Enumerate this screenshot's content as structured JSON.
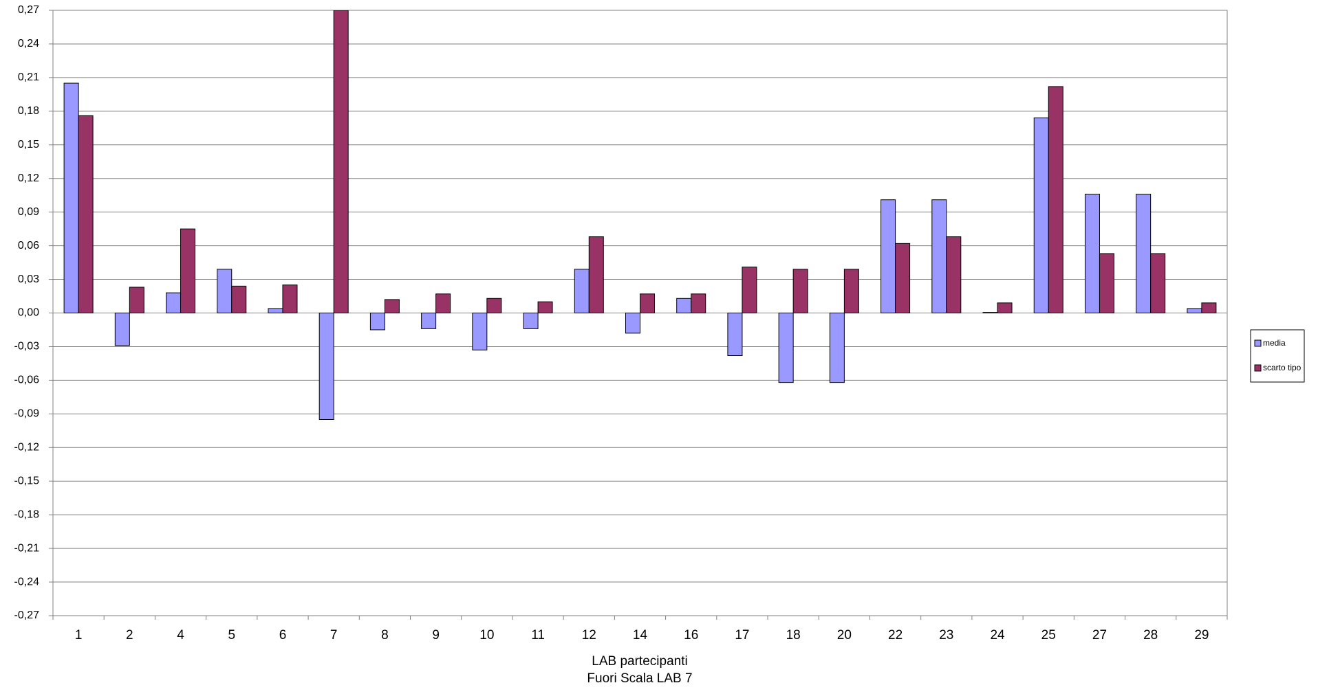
{
  "chart_data": {
    "type": "bar",
    "xlabel": "LAB partecipanti",
    "annotation": "Fuori Scala LAB 7",
    "annotation_color": "#ff0000",
    "categories": [
      "1",
      "2",
      "4",
      "5",
      "6",
      "7",
      "8",
      "9",
      "10",
      "11",
      "12",
      "14",
      "16",
      "17",
      "18",
      "20",
      "22",
      "23",
      "24",
      "25",
      "27",
      "28",
      "29"
    ],
    "series": [
      {
        "name": "media",
        "color": "#9999ff",
        "values": [
          0.205,
          -0.029,
          0.018,
          0.039,
          0.004,
          -0.095,
          -0.015,
          -0.014,
          -0.033,
          -0.014,
          0.039,
          -0.018,
          0.013,
          -0.038,
          -0.062,
          -0.062,
          0.101,
          0.101,
          0.0005,
          0.174,
          0.106,
          0.106,
          0.004
        ]
      },
      {
        "name": "scarto tipo",
        "color": "#993366",
        "values": [
          0.176,
          0.023,
          0.075,
          0.024,
          0.025,
          0.27,
          0.012,
          0.017,
          0.013,
          0.01,
          0.068,
          0.017,
          0.017,
          0.041,
          0.039,
          0.039,
          0.062,
          0.068,
          0.009,
          0.202,
          0.053,
          0.053,
          0.009
        ]
      }
    ],
    "ylim": [
      -0.27,
      0.27
    ],
    "yticks": [
      {
        "value": -0.27,
        "label": "-0,27"
      },
      {
        "value": -0.24,
        "label": "-0,24"
      },
      {
        "value": -0.21,
        "label": "-0,21"
      },
      {
        "value": -0.18,
        "label": "-0,18"
      },
      {
        "value": -0.15,
        "label": "-0,15"
      },
      {
        "value": -0.12,
        "label": "-0,12"
      },
      {
        "value": -0.09,
        "label": "-0,09"
      },
      {
        "value": -0.06,
        "label": "-0,06"
      },
      {
        "value": -0.03,
        "label": "-0,03"
      },
      {
        "value": 0,
        "label": "0,00"
      },
      {
        "value": 0.03,
        "label": "0,03"
      },
      {
        "value": 0.06,
        "label": "0,06"
      },
      {
        "value": 0.09,
        "label": "0,09"
      },
      {
        "value": 0.12,
        "label": "0,12"
      },
      {
        "value": 0.15,
        "label": "0,15"
      },
      {
        "value": 0.18,
        "label": "0,18"
      },
      {
        "value": 0.21,
        "label": "0,21"
      },
      {
        "value": 0.24,
        "label": "0,24"
      },
      {
        "value": 0.27,
        "label": "0,27"
      }
    ],
    "grid": true,
    "legend": "right"
  }
}
